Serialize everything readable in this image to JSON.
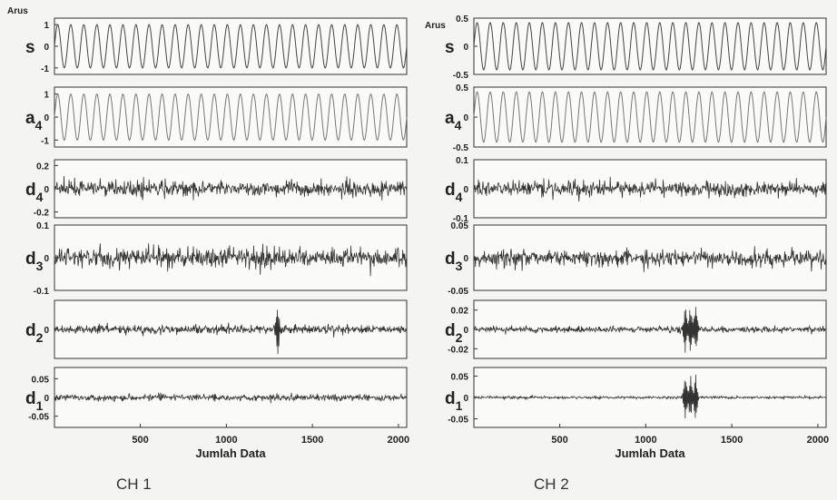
{
  "chart_data": [
    {
      "type": "line",
      "title": "CH 1",
      "xlabel": "Jumlah Data",
      "unit_label": "Arus",
      "xlim": [
        1,
        2048
      ],
      "xticks": [
        "500",
        "1000",
        "1500",
        "2000"
      ],
      "panels": [
        {
          "name": "s",
          "sub": "",
          "ylim": [
            -1.3,
            1.3
          ],
          "yticks": [
            "1",
            "0",
            "-1"
          ],
          "kind": "sine",
          "amplitude": 1.0,
          "cycles": 27
        },
        {
          "name": "a",
          "sub": "4",
          "ylim": [
            -1.3,
            1.3
          ],
          "yticks": [
            "1",
            "0",
            "-1"
          ],
          "kind": "sine",
          "amplitude": 1.0,
          "cycles": 27
        },
        {
          "name": "d",
          "sub": "4",
          "ylim": [
            -0.25,
            0.25
          ],
          "yticks": [
            "0.2",
            "0",
            "-0.2"
          ],
          "kind": "noise",
          "amplitude": 0.06,
          "spike_x": []
        },
        {
          "name": "d",
          "sub": "3",
          "ylim": [
            -0.1,
            0.1
          ],
          "yticks": [
            "0.1",
            "0",
            "-0.1"
          ],
          "kind": "noise",
          "amplitude": 0.03,
          "spike_x": []
        },
        {
          "name": "d",
          "sub": "2",
          "ylim": [
            -0.1,
            0.1
          ],
          "yticks": [
            "0"
          ],
          "kind": "noise",
          "amplitude": 0.015,
          "spike_x": [
            1300
          ]
        },
        {
          "name": "d",
          "sub": "1",
          "ylim": [
            -0.08,
            0.08
          ],
          "yticks": [
            "0.05",
            "0",
            "-0.05"
          ],
          "kind": "noise",
          "amplitude": 0.008,
          "spike_x": []
        }
      ]
    },
    {
      "type": "line",
      "title": "CH 2",
      "xlabel": "Jumlah Data",
      "unit_label": "Arus",
      "xlim": [
        1,
        2048
      ],
      "xticks": [
        "500",
        "1000",
        "1500",
        "2000"
      ],
      "panels": [
        {
          "name": "s",
          "sub": "",
          "ylim": [
            -0.5,
            0.5
          ],
          "yticks": [
            "0.5",
            "0",
            "-0.5"
          ],
          "kind": "sine",
          "amplitude": 0.42,
          "cycles": 27
        },
        {
          "name": "a",
          "sub": "4",
          "ylim": [
            -0.5,
            0.5
          ],
          "yticks": [
            "0.5",
            "0",
            "-0.5"
          ],
          "kind": "sine",
          "amplitude": 0.42,
          "cycles": 27
        },
        {
          "name": "d",
          "sub": "4",
          "ylim": [
            -0.1,
            0.1
          ],
          "yticks": [
            "0.1",
            "0",
            "-0.1"
          ],
          "kind": "noise",
          "amplitude": 0.025,
          "spike_x": []
        },
        {
          "name": "d",
          "sub": "3",
          "ylim": [
            -0.05,
            0.05
          ],
          "yticks": [
            "0.05",
            "0",
            "-0.05"
          ],
          "kind": "noise",
          "amplitude": 0.012,
          "spike_x": []
        },
        {
          "name": "d",
          "sub": "2",
          "ylim": [
            -0.03,
            0.03
          ],
          "yticks": [
            "0.02",
            "0",
            "-0.02"
          ],
          "kind": "noise",
          "amplitude": 0.003,
          "spike_x": [
            1230,
            1260,
            1290
          ]
        },
        {
          "name": "d",
          "sub": "1",
          "ylim": [
            -0.07,
            0.07
          ],
          "yticks": [
            "0.05",
            "0",
            "-0.05"
          ],
          "kind": "noise",
          "amplitude": 0.003,
          "spike_x": [
            1230,
            1260,
            1290
          ]
        }
      ]
    }
  ]
}
